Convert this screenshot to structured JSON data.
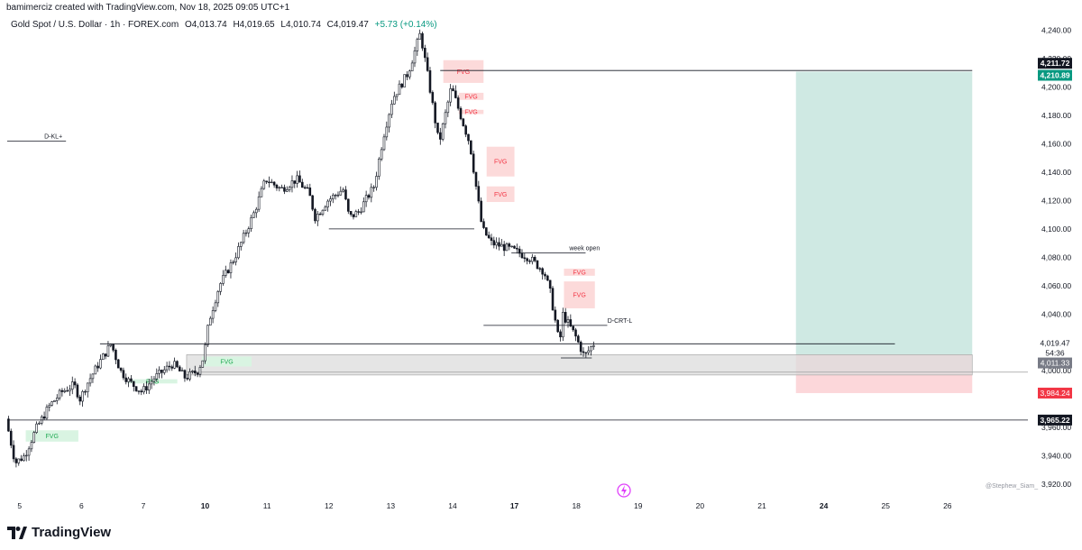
{
  "header": {
    "credit": "bamimerciz created with TradingView.com, Nov 18, 2025 09:05 UTC+1",
    "symbol": "Gold Spot / U.S. Dollar · 1h · FOREX.com",
    "open": "O4,013.74",
    "high": "H4,019.65",
    "low": "L4,010.74",
    "close": "C4,019.47",
    "change": "+5.73 (+0.14%)"
  },
  "branding": {
    "logo_text": "TradingView",
    "watermark": "@Stephew_Siam_"
  },
  "colors": {
    "candle": "#131722",
    "fvg_bear": "#fcdada",
    "fvg_bear_text": "#f23645",
    "fvg_bull": "#d9f4e2",
    "fvg_bull_text": "#22ab54",
    "target_zone": "#cfe9e3",
    "stop_zone": "#fcd7da",
    "zone_gray": "#dcdcdc",
    "badge_green": "#089981",
    "badge_red": "#f23645",
    "badge_dark": "#131722",
    "badge_gray": "#787b86"
  },
  "chart_data": {
    "type": "candlestick",
    "title": "Gold Spot / U.S. Dollar · 1h · FOREX.com",
    "y_axis": {
      "ticks": [
        "4,240.00",
        "4,220.00",
        "4,200.00",
        "4,180.00",
        "4,160.00",
        "4,140.00",
        "4,120.00",
        "4,100.00",
        "4,080.00",
        "4,060.00",
        "4,040.00",
        "4,000.00",
        "3,960.00",
        "3,940.00",
        "3,920.00"
      ],
      "tick_values": [
        4240,
        4220,
        4200,
        4180,
        4160,
        4140,
        4120,
        4100,
        4080,
        4060,
        4040,
        4000,
        3960,
        3940,
        3920
      ],
      "range": [
        3913,
        4250
      ]
    },
    "x_axis": {
      "ticks": [
        "5",
        "6",
        "7",
        "10",
        "11",
        "12",
        "13",
        "14",
        "17",
        "18",
        "19",
        "20",
        "21",
        "24",
        "25",
        "26"
      ],
      "bold": [
        "10",
        "17",
        "24"
      ],
      "positions": [
        0.5,
        1.5,
        2.5,
        3.5,
        4.5,
        5.5,
        6.5,
        7.5,
        8.5,
        9.5,
        10.5,
        11.5,
        12.5,
        13.5,
        14.5,
        15.5
      ],
      "range": [
        0.3,
        16.8
      ]
    },
    "price_badges": [
      {
        "label": "4,211.72",
        "value": 4211.72,
        "kind": "dark"
      },
      {
        "label": "4,210.89",
        "value": 4210.89,
        "kind": "green"
      },
      {
        "label": "4,019.47",
        "value": 4019.47,
        "kind": "light"
      },
      {
        "label": "54:36",
        "value": 4011.3,
        "kind": "plain"
      },
      {
        "label": "4,011.33",
        "value": 4011.33,
        "kind": "gray"
      },
      {
        "label": "3,984.24",
        "value": 3984.24,
        "kind": "red"
      },
      {
        "label": "3,965.22",
        "value": 3965.22,
        "kind": "dark"
      }
    ],
    "candle_path": [
      [
        0.3,
        3966
      ],
      [
        0.45,
        3935
      ],
      [
        0.6,
        3940
      ],
      [
        0.8,
        3960
      ],
      [
        1.0,
        3975
      ],
      [
        1.2,
        3985
      ],
      [
        1.4,
        3990
      ],
      [
        1.5,
        3980
      ],
      [
        1.6,
        3990
      ],
      [
        1.8,
        4005
      ],
      [
        2.0,
        4019
      ],
      [
        2.15,
        4000
      ],
      [
        2.3,
        3992
      ],
      [
        2.5,
        3985
      ],
      [
        2.7,
        3995
      ],
      [
        3.0,
        4005
      ],
      [
        3.2,
        3995
      ],
      [
        3.4,
        4000
      ],
      [
        3.5,
        4010
      ],
      [
        3.58,
        4035
      ],
      [
        3.75,
        4060
      ],
      [
        4.0,
        4080
      ],
      [
        4.3,
        4110
      ],
      [
        4.5,
        4135
      ],
      [
        4.75,
        4128
      ],
      [
        5.0,
        4135
      ],
      [
        5.2,
        4125
      ],
      [
        5.3,
        4108
      ],
      [
        5.5,
        4120
      ],
      [
        5.75,
        4128
      ],
      [
        5.85,
        4108
      ],
      [
        6.0,
        4112
      ],
      [
        6.25,
        4130
      ],
      [
        6.4,
        4165
      ],
      [
        6.55,
        4192
      ],
      [
        6.8,
        4210
      ],
      [
        7.0,
        4238
      ],
      [
        7.15,
        4200
      ],
      [
        7.3,
        4160
      ],
      [
        7.5,
        4200
      ],
      [
        7.65,
        4180
      ],
      [
        7.8,
        4160
      ],
      [
        8.0,
        4100
      ],
      [
        8.15,
        4090
      ],
      [
        8.3,
        4088
      ],
      [
        8.5,
        4085
      ],
      [
        8.75,
        4080
      ],
      [
        9.0,
        4070
      ],
      [
        9.1,
        4055
      ],
      [
        9.25,
        4018
      ],
      [
        9.3,
        4040
      ],
      [
        9.5,
        4025
      ],
      [
        9.65,
        4010
      ],
      [
        9.8,
        4019
      ]
    ],
    "annotations": {
      "fvg_bearish": [
        {
          "label": "FVG",
          "x0": 7.35,
          "x1": 8.0,
          "y0": 4203,
          "y1": 4219
        },
        {
          "label": "FVG",
          "x0": 7.6,
          "x1": 8.0,
          "y0": 4191,
          "y1": 4196
        },
        {
          "label": "FVG",
          "x0": 7.6,
          "x1": 8.0,
          "y0": 4181,
          "y1": 4184
        },
        {
          "label": "FVG",
          "x0": 8.05,
          "x1": 8.5,
          "y0": 4137,
          "y1": 4158
        },
        {
          "label": "FVG",
          "x0": 8.05,
          "x1": 8.5,
          "y0": 4119,
          "y1": 4130
        },
        {
          "label": "FVG",
          "x0": 9.3,
          "x1": 9.8,
          "y0": 4067,
          "y1": 4072
        },
        {
          "label": "FVG",
          "x0": 9.3,
          "x1": 9.8,
          "y0": 4044,
          "y1": 4063
        }
      ],
      "fvg_bullish": [
        {
          "label": "FVG",
          "x0": 3.45,
          "x1": 4.25,
          "y0": 4003,
          "y1": 4010
        },
        {
          "label": "FVG",
          "x0": 2.25,
          "x1": 3.05,
          "y0": 3991,
          "y1": 3994
        },
        {
          "label": "FVG",
          "x0": 0.6,
          "x1": 1.45,
          "y0": 3950,
          "y1": 3958
        }
      ],
      "levels": [
        {
          "label": "D-KL+",
          "x0": 0.3,
          "x1": 1.25,
          "y": 4162
        },
        {
          "label": "",
          "x0": 7.3,
          "x1": 15.9,
          "y": 4211.72
        },
        {
          "label": "",
          "x0": 5.5,
          "x1": 7.85,
          "y": 4100
        },
        {
          "label": "week open",
          "x0": 8.45,
          "x1": 9.65,
          "y": 4083
        },
        {
          "label": "D-CRT-L",
          "x0": 8.0,
          "x1": 10.0,
          "y": 4032
        },
        {
          "label": "",
          "x0": 1.8,
          "x1": 14.65,
          "y": 4019
        },
        {
          "label": "",
          "x0": 0.3,
          "x1": 16.8,
          "y": 3965.22
        },
        {
          "label": "",
          "x0": 9.25,
          "x1": 9.75,
          "y": 4009
        }
      ],
      "gray_zone": {
        "x0": 3.2,
        "x1": 15.9,
        "y0": 3997,
        "y1": 4011.3
      },
      "position": {
        "x0": 13.05,
        "x1": 15.9,
        "entry": 4011.3,
        "target": 4210.89,
        "stop": 3984.24
      },
      "faint_line": {
        "x0": 3.2,
        "x1": 16.8,
        "y": 3999
      }
    }
  }
}
